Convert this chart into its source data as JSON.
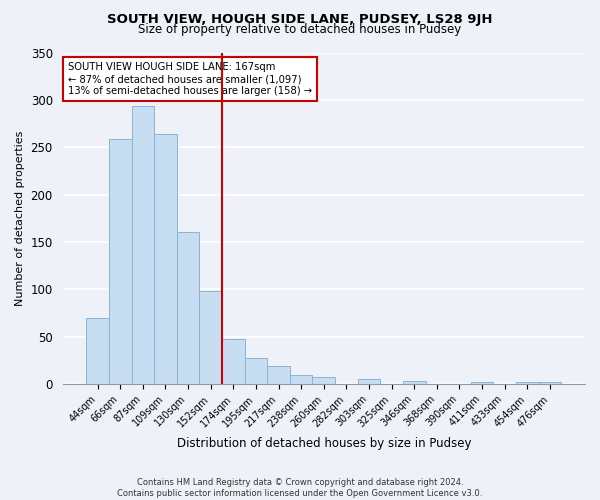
{
  "title1": "SOUTH VIEW, HOUGH SIDE LANE, PUDSEY, LS28 9JH",
  "title2": "Size of property relative to detached houses in Pudsey",
  "xlabel": "Distribution of detached houses by size in Pudsey",
  "ylabel": "Number of detached properties",
  "bar_labels": [
    "44sqm",
    "66sqm",
    "87sqm",
    "109sqm",
    "130sqm",
    "152sqm",
    "174sqm",
    "195sqm",
    "217sqm",
    "238sqm",
    "260sqm",
    "282sqm",
    "303sqm",
    "325sqm",
    "346sqm",
    "368sqm",
    "390sqm",
    "411sqm",
    "433sqm",
    "454sqm",
    "476sqm"
  ],
  "bar_values": [
    70,
    259,
    294,
    264,
    160,
    98,
    48,
    28,
    19,
    10,
    7,
    0,
    5,
    0,
    3,
    0,
    0,
    2,
    0,
    2,
    2
  ],
  "bar_color": "#c7ddf2",
  "bar_edge_color": "#8ab4d4",
  "vline_color": "#cc0000",
  "annotation_line1": "SOUTH VIEW HOUGH SIDE LANE: 167sqm",
  "annotation_line2": "← 87% of detached houses are smaller (1,097)",
  "annotation_line3": "13% of semi-detached houses are larger (158) →",
  "annotation_box_color": "white",
  "annotation_box_edge_color": "#cc0000",
  "ylim": [
    0,
    350
  ],
  "yticks": [
    0,
    50,
    100,
    150,
    200,
    250,
    300,
    350
  ],
  "footer_text": "Contains HM Land Registry data © Crown copyright and database right 2024.\nContains public sector information licensed under the Open Government Licence v3.0.",
  "background_color": "#eef2f8"
}
